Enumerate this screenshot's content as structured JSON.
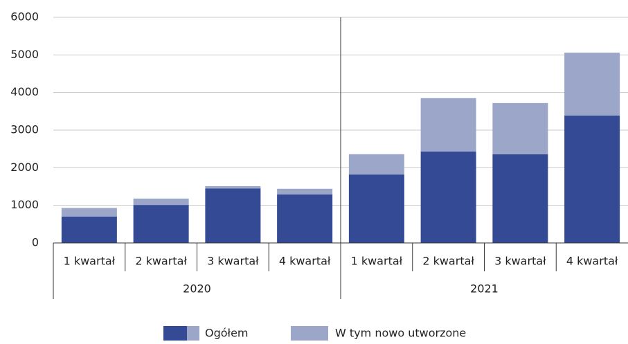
{
  "chart_data": {
    "type": "stacked_bar",
    "groups": [
      {
        "label": "2020",
        "categories": [
          "1 kwartał",
          "2 kwartał",
          "3 kwartał",
          "4 kwartał"
        ]
      },
      {
        "label": "2021",
        "categories": [
          "1 kwartał",
          "2 kwartał",
          "3 kwartał",
          "4 kwartał"
        ]
      }
    ],
    "series": [
      {
        "name": "Ogółem",
        "color": "#344a94",
        "values": [
          700,
          1010,
          1450,
          1290,
          1820,
          2430,
          2360,
          3390
        ]
      },
      {
        "name": "W tym nowo utworzone",
        "color": "#9ba6c9",
        "values": [
          230,
          170,
          60,
          150,
          540,
          1420,
          1360,
          1670
        ]
      }
    ],
    "ylim": [
      0,
      6000
    ],
    "yticks": [
      0,
      1000,
      2000,
      3000,
      4000,
      5000,
      6000
    ],
    "grid": true
  }
}
